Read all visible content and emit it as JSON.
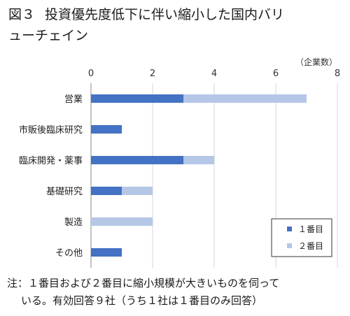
{
  "header": {
    "fig_label": "図３",
    "title_line1": "投資優先度低下に伴い縮小した国内バリ",
    "title_line2": "ューチェイン"
  },
  "unit_label": "（企業数）",
  "note": {
    "line1": "注：１番目および２番目に縮小規模が大きいものを伺って",
    "line2": "いる。有効回答９社（うち１社は１番目のみ回答）"
  },
  "colors": {
    "first": "#4472c4",
    "second": "#b4c7e7",
    "grid": "#d4d4d4",
    "axis": "#888888"
  },
  "chart_data": {
    "type": "bar",
    "orientation": "horizontal",
    "stacked": true,
    "categories": [
      "営業",
      "市販後臨床研究",
      "臨床開発・薬事",
      "基礎研究",
      "製造",
      "その他"
    ],
    "series": [
      {
        "name": "１番目",
        "values": [
          3,
          1,
          3,
          1,
          0,
          1
        ]
      },
      {
        "name": "２番目",
        "values": [
          4,
          0,
          1,
          1,
          2,
          0
        ]
      }
    ],
    "x_ticks": [
      "0",
      "2",
      "4",
      "6",
      "8"
    ],
    "xlim": [
      0,
      8
    ],
    "grid": true,
    "legend_position": "bottom-right"
  }
}
